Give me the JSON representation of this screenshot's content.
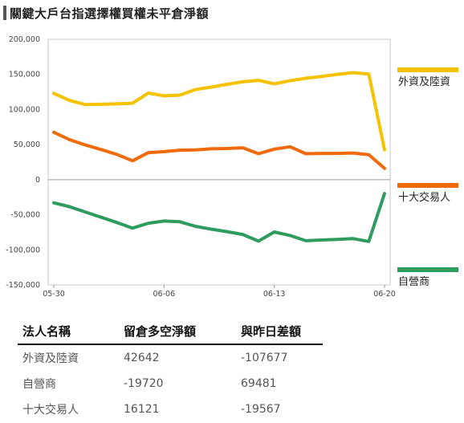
{
  "header": {
    "title": "關鍵大戶台指選擇權買權未平倉淨額"
  },
  "chart_data": {
    "type": "line",
    "x": [
      "05-30",
      "05-31",
      "06-01",
      "06-02",
      "06-03",
      "06-04",
      "06-05",
      "06-06",
      "06-07",
      "06-08",
      "06-09",
      "06-10",
      "06-11",
      "06-12",
      "06-13",
      "06-14",
      "06-15",
      "06-16",
      "06-17",
      "06-18",
      "06-19",
      "06-20"
    ],
    "xticks": [
      "05-30",
      "06-06",
      "06-13",
      "06-20"
    ],
    "ylim": [
      -150000,
      200000
    ],
    "yticks": [
      -150000,
      -100000,
      -50000,
      0,
      50000,
      100000,
      150000,
      200000
    ],
    "ytick_labels": [
      "-150,000",
      "-100,000",
      "-50,000",
      "0",
      "50,000",
      "100,000",
      "150,000",
      "200,000"
    ],
    "series": [
      {
        "name": "外資及陸資",
        "color": "#f5c200",
        "values": [
          123000,
          113000,
          107000,
          107500,
          108000,
          109000,
          123500,
          119500,
          120500,
          128500,
          132000,
          136000,
          139500,
          141500,
          136500,
          141000,
          144500,
          147000,
          150000,
          152500,
          150500,
          42642
        ]
      },
      {
        "name": "十大交易人",
        "color": "#f06a0a",
        "values": [
          67500,
          57000,
          49500,
          43000,
          36000,
          27000,
          38500,
          40000,
          42000,
          42500,
          44000,
          44500,
          45500,
          37000,
          43500,
          47000,
          37000,
          37500,
          37500,
          38000,
          35500,
          16121
        ]
      },
      {
        "name": "自營商",
        "color": "#2e9b5f",
        "values": [
          -33000,
          -38500,
          -46000,
          -53500,
          -61000,
          -69000,
          -62000,
          -59000,
          -60000,
          -66500,
          -70500,
          -74000,
          -78000,
          -87500,
          -74500,
          -79500,
          -87000,
          -86000,
          -85000,
          -84000,
          -88000,
          -19720
        ]
      }
    ],
    "legend": "right"
  },
  "table": {
    "headers": [
      "法人名稱",
      "留倉多空淨額",
      "與昨日差額"
    ],
    "rows": [
      [
        "外資及陸資",
        "42642",
        "-107677"
      ],
      [
        "自營商",
        "-19720",
        "69481"
      ],
      [
        "十大交易人",
        "16121",
        "-19567"
      ]
    ]
  }
}
